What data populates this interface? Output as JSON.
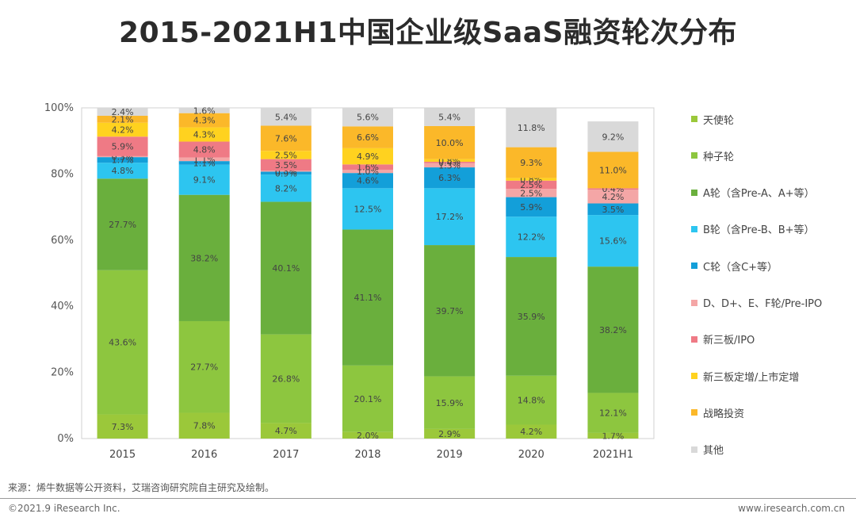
{
  "title": "2015-2021H1中国企业级SaaS融资轮次分布",
  "source": "来源：烯牛数据等公开资料，艾瑞咨询研究院自主研究及绘制。",
  "footer": {
    "copyright": "©2021.9 iResearch Inc.",
    "website": "www.iresearch.com.cn"
  },
  "chart_data": {
    "type": "bar",
    "stacked": true,
    "title": "2015-2021H1中国企业级SaaS融资轮次分布",
    "categories": [
      "2015",
      "2016",
      "2017",
      "2018",
      "2019",
      "2020",
      "2021H1"
    ],
    "ylim": [
      0,
      100
    ],
    "yticks": [
      "0%",
      "20%",
      "40%",
      "60%",
      "80%",
      "100%"
    ],
    "legend_position": "right",
    "series": [
      {
        "name": "天使轮",
        "color": "#9BC83A",
        "labels": [
          "7.3%",
          "7.8%",
          "4.7%",
          "2.0%",
          "2.9%",
          "4.2%",
          "1.7%"
        ],
        "values": [
          7.3,
          7.8,
          4.7,
          2.0,
          2.9,
          4.2,
          1.7
        ]
      },
      {
        "name": "种子轮",
        "color": "#8DC63F",
        "labels": [
          "43.6%",
          "27.7%",
          "26.8%",
          "20.1%",
          "15.9%",
          "14.8%",
          "12.1%"
        ],
        "values": [
          43.6,
          27.7,
          26.8,
          20.1,
          15.9,
          14.8,
          12.1
        ]
      },
      {
        "name": "A轮（含Pre-A、A+等）",
        "color": "#6AAF3D",
        "labels": [
          "27.7%",
          "38.2%",
          "40.1%",
          "41.1%",
          "39.7%",
          "35.9%",
          "38.2%"
        ],
        "values": [
          27.7,
          38.2,
          40.1,
          41.1,
          39.7,
          35.9,
          38.2
        ]
      },
      {
        "name": "B轮（含Pre-B、B+等）",
        "color": "#2DC5F0",
        "labels": [
          "4.8%",
          "9.1%",
          "8.2%",
          "12.5%",
          "17.2%",
          "12.2%",
          "15.6%"
        ],
        "values": [
          4.8,
          9.1,
          8.2,
          12.5,
          17.2,
          12.2,
          15.6
        ]
      },
      {
        "name": "C轮（含C+等）",
        "color": "#139FD9",
        "labels": [
          "1.7%",
          "1.1%",
          "0.9%",
          "4.6%",
          "6.3%",
          "5.9%",
          "3.5%"
        ],
        "values": [
          1.7,
          1.1,
          0.9,
          4.6,
          6.3,
          5.9,
          3.5
        ]
      },
      {
        "name": "D、D+、E、F轮/Pre-IPO",
        "color": "#F4A6A6",
        "labels": [
          "0.3%",
          "1.1%",
          "0.3%",
          "1.0%",
          "1.3%",
          "2.5%",
          "4.2%"
        ],
        "values": [
          0.3,
          1.1,
          0.3,
          1.0,
          1.3,
          2.5,
          4.2
        ]
      },
      {
        "name": "新三板/IPO",
        "color": "#EF7A85",
        "labels": [
          "5.9%",
          "4.8%",
          "3.5%",
          "1.6%",
          "0.4%",
          "2.5%",
          "0.4%"
        ],
        "values": [
          5.9,
          4.8,
          3.5,
          1.6,
          0.4,
          2.5,
          0.4
        ]
      },
      {
        "name": "新三板定增/上市定增",
        "color": "#FFD21F",
        "labels": [
          "4.2%",
          "4.3%",
          "2.5%",
          "4.9%",
          "0.8%",
          "0.8%",
          ""
        ],
        "values": [
          4.2,
          4.3,
          2.5,
          4.9,
          0.8,
          0.8,
          0.0
        ]
      },
      {
        "name": "战略投资",
        "color": "#FBB829",
        "labels": [
          "2.1%",
          "4.3%",
          "7.6%",
          "6.6%",
          "10.0%",
          "9.3%",
          "11.0%"
        ],
        "values": [
          2.1,
          4.3,
          7.6,
          6.6,
          10.0,
          9.3,
          11.0
        ]
      },
      {
        "name": "其他",
        "color": "#D9D9D9",
        "labels": [
          "2.4%",
          "1.6%",
          "5.4%",
          "5.6%",
          "5.4%",
          "11.8%",
          "9.2%"
        ],
        "values": [
          2.4,
          1.6,
          5.4,
          5.6,
          5.4,
          11.8,
          9.2
        ]
      }
    ]
  }
}
